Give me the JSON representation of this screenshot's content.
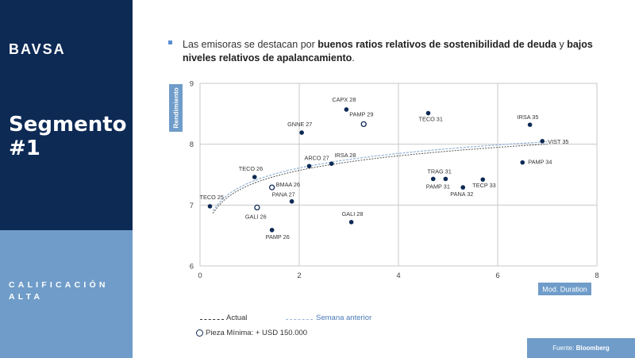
{
  "sidebar": {
    "logo": "BAVSA",
    "segment_line1": "Segmento",
    "segment_line2": "#1",
    "calificacion_line1": "CALIFICACIÓN",
    "calificacion_line2": "ALTA"
  },
  "headline": {
    "part1": "Las emisoras se destacan por ",
    "bold1": "buenos ratios relativos de sostenibilidad de deuda",
    "part2": " y ",
    "bold2": "bajos niveles relativos de apalancamiento",
    "part3": "."
  },
  "source": {
    "prefix": "Fuente: ",
    "name": "Bloomberg"
  },
  "legend": {
    "actual": "Actual",
    "previous": "Semana anterior",
    "open_marker": "Pieza Mínima: + USD 150.000"
  },
  "colors": {
    "navy": "#0d2a55",
    "steel_blue": "#6f9cc9",
    "point": "#0d2a55",
    "axis_label_bg": "#6f9cc9"
  },
  "chart_data": {
    "type": "scatter",
    "xlabel": "Mod. Duration",
    "ylabel": "Rendimiento",
    "xlim": [
      0,
      8
    ],
    "ylim": [
      6,
      9
    ],
    "xticks": [
      "0",
      "2",
      "4",
      "6",
      "8"
    ],
    "yticks": [
      "6",
      "7",
      "8",
      "9"
    ],
    "grid": true,
    "points": [
      {
        "label": "TECO 25",
        "x": 0.2,
        "y": 6.98,
        "open": false
      },
      {
        "label": "TECO 26",
        "x": 1.1,
        "y": 7.46,
        "open": false
      },
      {
        "label": "GALI 26",
        "x": 1.15,
        "y": 6.96,
        "open": true
      },
      {
        "label": "BMAA 26",
        "x": 1.45,
        "y": 7.29,
        "open": true
      },
      {
        "label": "PAMP 26",
        "x": 1.45,
        "y": 6.59,
        "open": false
      },
      {
        "label": "PANA 27",
        "x": 1.85,
        "y": 7.06,
        "open": false
      },
      {
        "label": "GNNE 27",
        "x": 2.05,
        "y": 8.19,
        "open": false
      },
      {
        "label": "ARCO 27",
        "x": 2.2,
        "y": 7.64,
        "open": false
      },
      {
        "label": "IRSA 28",
        "x": 2.65,
        "y": 7.68,
        "open": false
      },
      {
        "label": "CAPX 28",
        "x": 2.95,
        "y": 8.57,
        "open": false
      },
      {
        "label": "GALI 28",
        "x": 3.05,
        "y": 6.72,
        "open": false
      },
      {
        "label": "PAMP 29",
        "x": 3.3,
        "y": 8.33,
        "open": true
      },
      {
        "label": "TECO 31",
        "x": 4.6,
        "y": 8.51,
        "open": false
      },
      {
        "label": "TRAG 31",
        "x": 4.95,
        "y": 7.43,
        "open": false
      },
      {
        "label": "PAMP 31",
        "x": 4.7,
        "y": 7.43,
        "open": false
      },
      {
        "label": "PANA 32",
        "x": 5.3,
        "y": 7.29,
        "open": false
      },
      {
        "label": "TECP 33",
        "x": 5.7,
        "y": 7.42,
        "open": false
      },
      {
        "label": "PAMP 34",
        "x": 6.5,
        "y": 7.7,
        "open": false
      },
      {
        "label": "IRSA 35",
        "x": 6.65,
        "y": 8.32,
        "open": false
      },
      {
        "label": "VIST 35",
        "x": 6.9,
        "y": 8.05,
        "open": false
      }
    ],
    "series": [
      {
        "name": "Actual",
        "style": "dashed"
      },
      {
        "name": "Semana anterior",
        "style": "dashed-light"
      }
    ]
  }
}
